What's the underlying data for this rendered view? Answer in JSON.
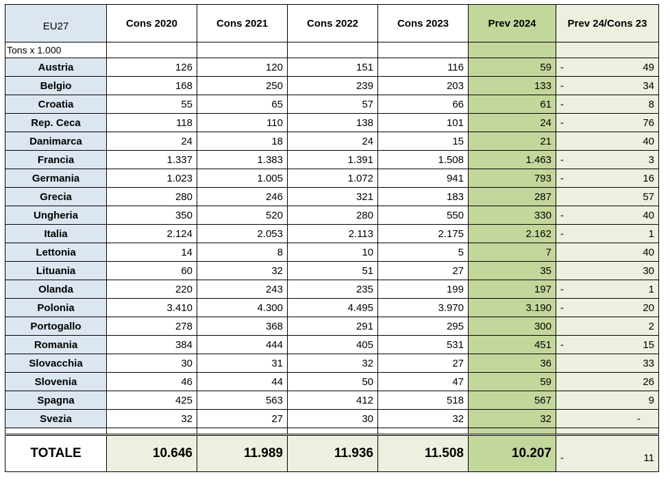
{
  "header": {
    "region": "EU27",
    "columns": [
      "Cons 2020",
      "Cons 2021",
      "Cons 2022",
      "Cons 2023",
      "Prev 2024",
      "Prev 24/Cons 23"
    ],
    "unit": "Tons x 1.000"
  },
  "rows": [
    {
      "country": "Austria",
      "c2020": "126",
      "c2021": "120",
      "c2022": "151",
      "c2023": "116",
      "p2024": "59",
      "sign": "-",
      "var": "49"
    },
    {
      "country": "Belgio",
      "c2020": "168",
      "c2021": "250",
      "c2022": "239",
      "c2023": "203",
      "p2024": "133",
      "sign": "-",
      "var": "34"
    },
    {
      "country": "Croatia",
      "c2020": "55",
      "c2021": "65",
      "c2022": "57",
      "c2023": "66",
      "p2024": "61",
      "sign": "-",
      "var": "8"
    },
    {
      "country": "Rep. Ceca",
      "c2020": "118",
      "c2021": "110",
      "c2022": "138",
      "c2023": "101",
      "p2024": "24",
      "sign": "-",
      "var": "76"
    },
    {
      "country": "Danimarca",
      "c2020": "24",
      "c2021": "18",
      "c2022": "24",
      "c2023": "15",
      "p2024": "21",
      "sign": "",
      "var": "40"
    },
    {
      "country": "Francia",
      "c2020": "1.337",
      "c2021": "1.383",
      "c2022": "1.391",
      "c2023": "1.508",
      "p2024": "1.463",
      "sign": "-",
      "var": "3"
    },
    {
      "country": "Germania",
      "c2020": "1.023",
      "c2021": "1.005",
      "c2022": "1.072",
      "c2023": "941",
      "p2024": "793",
      "sign": "-",
      "var": "16"
    },
    {
      "country": "Grecia",
      "c2020": "280",
      "c2021": "246",
      "c2022": "321",
      "c2023": "183",
      "p2024": "287",
      "sign": "",
      "var": "57"
    },
    {
      "country": "Ungheria",
      "c2020": "350",
      "c2021": "520",
      "c2022": "280",
      "c2023": "550",
      "p2024": "330",
      "sign": "-",
      "var": "40"
    },
    {
      "country": "Italia",
      "c2020": "2.124",
      "c2021": "2.053",
      "c2022": "2.113",
      "c2023": "2.175",
      "p2024": "2.162",
      "sign": "-",
      "var": "1"
    },
    {
      "country": "Lettonia",
      "c2020": "14",
      "c2021": "8",
      "c2022": "10",
      "c2023": "5",
      "p2024": "7",
      "sign": "",
      "var": "40"
    },
    {
      "country": "Lituania",
      "c2020": "60",
      "c2021": "32",
      "c2022": "51",
      "c2023": "27",
      "p2024": "35",
      "sign": "",
      "var": "30"
    },
    {
      "country": "Olanda",
      "c2020": "220",
      "c2021": "243",
      "c2022": "235",
      "c2023": "199",
      "p2024": "197",
      "sign": "-",
      "var": "1"
    },
    {
      "country": "Polonia",
      "c2020": "3.410",
      "c2021": "4.300",
      "c2022": "4.495",
      "c2023": "3.970",
      "p2024": "3.190",
      "sign": "-",
      "var": "20"
    },
    {
      "country": "Portogallo",
      "c2020": "278",
      "c2021": "368",
      "c2022": "291",
      "c2023": "295",
      "p2024": "300",
      "sign": "",
      "var": "2"
    },
    {
      "country": "Romania",
      "c2020": "384",
      "c2021": "444",
      "c2022": "405",
      "c2023": "531",
      "p2024": "451",
      "sign": "-",
      "var": "15"
    },
    {
      "country": "Slovacchia",
      "c2020": "30",
      "c2021": "31",
      "c2022": "32",
      "c2023": "27",
      "p2024": "36",
      "sign": "",
      "var": "33"
    },
    {
      "country": "Slovenia",
      "c2020": "46",
      "c2021": "44",
      "c2022": "50",
      "c2023": "47",
      "p2024": "59",
      "sign": "",
      "var": "26"
    },
    {
      "country": "Spagna",
      "c2020": "425",
      "c2021": "563",
      "c2022": "412",
      "c2023": "518",
      "p2024": "567",
      "sign": "",
      "var": "9"
    },
    {
      "country": "Svezia",
      "c2020": "32",
      "c2021": "27",
      "c2022": "30",
      "c2023": "32",
      "p2024": "32",
      "sign": "",
      "var": "-",
      "center": true
    }
  ],
  "total": {
    "label": "TOTALE",
    "c2020": "10.646",
    "c2021": "11.989",
    "c2022": "11.936",
    "c2023": "11.508",
    "p2024": "10.207",
    "sign": "-",
    "var": "11"
  },
  "colors": {
    "country_bg": "#dce6f1",
    "prev_bg": "#c4d79b",
    "var_bg": "#ebf1de"
  }
}
